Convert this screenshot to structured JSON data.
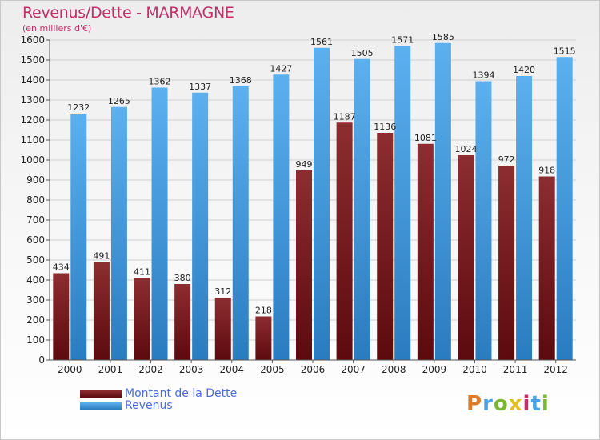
{
  "header": {
    "title": "Revenus/Dette - MARMAGNE",
    "subtitle": "(en milliers d'€)"
  },
  "legend": [
    {
      "label": "Montant de la Dette",
      "color": "#7a1e22"
    },
    {
      "label": "Revenus",
      "color": "#4aa3e6"
    }
  ],
  "logo": {
    "text": "Proxiti",
    "colors": [
      "#e07a28",
      "#4aa3e6",
      "#7ab833",
      "#e0c020",
      "#c0306a",
      "#4aa3e6",
      "#7ab833"
    ]
  },
  "chart_data": {
    "type": "bar",
    "title": "Revenus/Dette - MARMAGNE",
    "ylim": [
      0,
      1600
    ],
    "ytick_step": 100,
    "grid": true,
    "legend_position": "bottom-left",
    "categories": [
      "2000",
      "2001",
      "2002",
      "2003",
      "2004",
      "2005",
      "2006",
      "2007",
      "2008",
      "2009",
      "2010",
      "2011",
      "2012"
    ],
    "series": [
      {
        "name": "Montant de la Dette",
        "color": "#7a1e22",
        "values": [
          434,
          491,
          411,
          380,
          312,
          218,
          949,
          1187,
          1136,
          1081,
          1024,
          972,
          918
        ],
        "labels": [
          "434",
          "491",
          "411",
          "380",
          "312",
          "218",
          "949",
          "1187",
          "1136",
          "1081",
          "1024",
          "972",
          "918"
        ]
      },
      {
        "name": "Revenus",
        "color": "#4aa3e6",
        "values": [
          1232,
          1265,
          1362,
          1337,
          1368,
          1427,
          1561,
          1505,
          1571,
          1585,
          1394,
          1420,
          1515
        ],
        "labels": [
          "1232",
          "1265",
          "1362",
          "1337",
          "1368",
          "1427",
          "1561",
          "1505",
          "1571",
          "1585",
          "1394",
          "1420",
          "1515"
        ]
      }
    ]
  }
}
